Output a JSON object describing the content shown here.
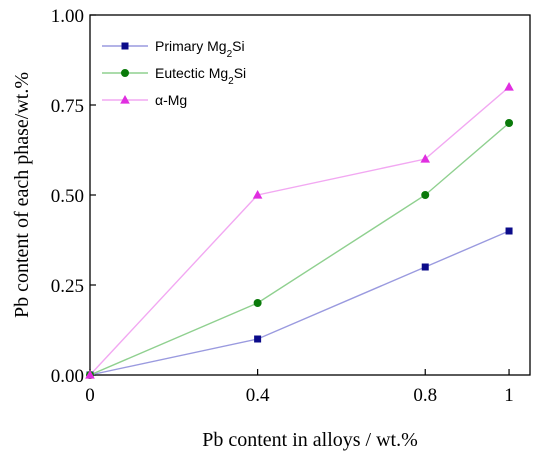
{
  "chart_data": {
    "type": "line",
    "title": "",
    "xlabel": "Pb content in alloys / wt.%",
    "ylabel": "Pb content of each phase/wt.%",
    "x": [
      0,
      0.4,
      0.8,
      1.0
    ],
    "x_tick_labels": [
      "0",
      "0.4",
      "0.8",
      "1"
    ],
    "y_tick_labels": [
      "0.00",
      "0.25",
      "0.50",
      "0.75",
      "1.00"
    ],
    "y_ticks": [
      0,
      0.25,
      0.5,
      0.75,
      1.0
    ],
    "xlim": [
      0,
      1.05
    ],
    "ylim": [
      0,
      1.0
    ],
    "grid": false,
    "legend_position": "top-left",
    "series": [
      {
        "name": "Primary Mg2Si",
        "name_base": "Primary Mg",
        "name_sub": "2",
        "name_tail": "Si",
        "values": [
          0,
          0.1,
          0.3,
          0.4
        ],
        "color": "#9a9adf",
        "marker_color": "#0b0b8a",
        "marker": "square"
      },
      {
        "name": "Eutectic Mg2Si",
        "name_base": "Eutectic Mg",
        "name_sub": "2",
        "name_tail": "Si",
        "values": [
          0,
          0.2,
          0.5,
          0.7
        ],
        "color": "#8fd08f",
        "marker_color": "#0a7a0a",
        "marker": "circle"
      },
      {
        "name": "α-Mg",
        "name_base": "α-Mg",
        "name_sub": "",
        "name_tail": "",
        "values": [
          0,
          0.5,
          0.6,
          0.8
        ],
        "color": "#f2a8f2",
        "marker_color": "#e02ee0",
        "marker": "triangle"
      }
    ]
  }
}
